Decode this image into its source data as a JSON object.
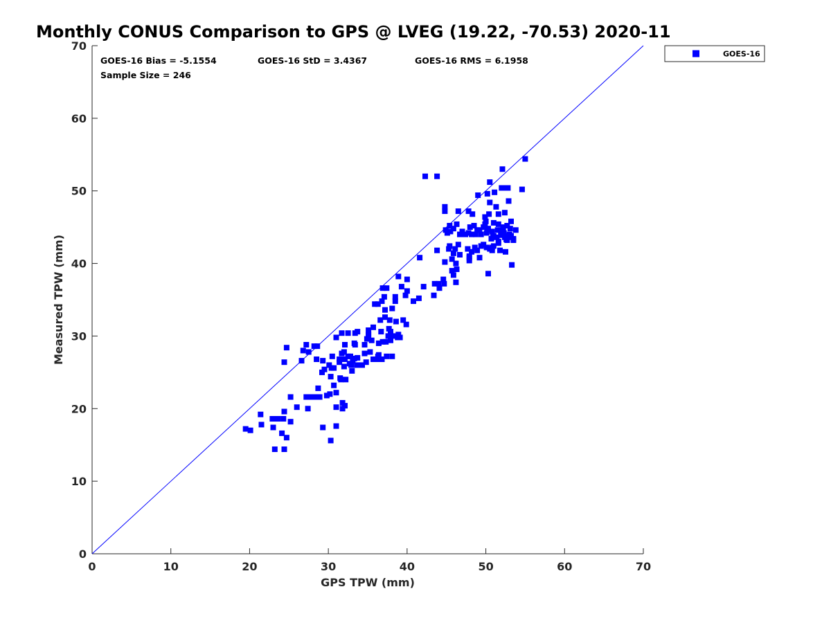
{
  "chart_data": {
    "type": "scatter",
    "title": "Monthly CONUS Comparison to GPS @ LVEG (19.22, -70.53) 2020-11",
    "xlabel": "GPS TPW (mm)",
    "ylabel": "Measured TPW (mm)",
    "xlim": [
      0,
      70
    ],
    "ylim": [
      0,
      70
    ],
    "xticks": [
      0,
      10,
      20,
      30,
      40,
      50,
      60,
      70
    ],
    "yticks": [
      0,
      10,
      20,
      30,
      40,
      50,
      60,
      70
    ],
    "grid": false,
    "legend_position": "top-right (outside plot)",
    "reference_line": {
      "from": [
        0,
        0
      ],
      "to": [
        70,
        70
      ],
      "color": "#0000ff"
    },
    "stats": {
      "bias": "GOES-16 Bias = -5.1554",
      "std": "GOES-16 StD = 3.4367",
      "rms": "GOES-16 RMS = 6.1958",
      "sample": "Sample Size = 246"
    },
    "series": [
      {
        "name": "GOES-16",
        "color": "#0000ff",
        "marker": "square",
        "points": [
          [
            19.5,
            17.2
          ],
          [
            20.1,
            17.0
          ],
          [
            21.4,
            19.2
          ],
          [
            21.5,
            17.8
          ],
          [
            22.9,
            18.6
          ],
          [
            23.0,
            17.4
          ],
          [
            23.2,
            14.4
          ],
          [
            23.6,
            18.6
          ],
          [
            24.1,
            16.6
          ],
          [
            24.4,
            14.4
          ],
          [
            24.4,
            19.6
          ],
          [
            24.7,
            16.0
          ],
          [
            25.2,
            18.2
          ],
          [
            24.4,
            26.4
          ],
          [
            24.7,
            28.4
          ],
          [
            25.2,
            21.6
          ],
          [
            26.0,
            20.2
          ],
          [
            26.6,
            26.6
          ],
          [
            26.8,
            28.0
          ],
          [
            27.2,
            28.8
          ],
          [
            27.5,
            27.8
          ],
          [
            27.2,
            21.6
          ],
          [
            27.4,
            20.0
          ],
          [
            27.8,
            21.6
          ],
          [
            28.3,
            21.6
          ],
          [
            28.2,
            28.6
          ],
          [
            28.6,
            28.6
          ],
          [
            28.5,
            26.8
          ],
          [
            28.9,
            21.6
          ],
          [
            28.7,
            22.8
          ],
          [
            29.2,
            25.0
          ],
          [
            29.3,
            26.6
          ],
          [
            29.3,
            17.4
          ],
          [
            29.5,
            25.4
          ],
          [
            29.8,
            21.8
          ],
          [
            30.1,
            26.0
          ],
          [
            30.2,
            22.0
          ],
          [
            30.3,
            15.6
          ],
          [
            30.5,
            27.2
          ],
          [
            30.3,
            24.4
          ],
          [
            30.7,
            25.6
          ],
          [
            30.7,
            23.2
          ],
          [
            31.0,
            29.8
          ],
          [
            31.0,
            20.2
          ],
          [
            31.0,
            22.2
          ],
          [
            31.0,
            17.6
          ],
          [
            31.4,
            26.8
          ],
          [
            31.5,
            24.2
          ],
          [
            31.7,
            30.4
          ],
          [
            31.7,
            27.6
          ],
          [
            31.6,
            24.0
          ],
          [
            31.8,
            20.8
          ],
          [
            31.8,
            20.0
          ],
          [
            32.0,
            27.8
          ],
          [
            32.0,
            25.8
          ],
          [
            32.1,
            28.8
          ],
          [
            32.1,
            20.4
          ],
          [
            32.1,
            26.8
          ],
          [
            32.2,
            24.0
          ],
          [
            32.5,
            27.2
          ],
          [
            32.5,
            30.4
          ],
          [
            32.7,
            26.2
          ],
          [
            32.8,
            27.2
          ],
          [
            32.9,
            26.0
          ],
          [
            33.0,
            25.2
          ],
          [
            33.1,
            26.6
          ],
          [
            33.3,
            29.0
          ],
          [
            33.4,
            28.8
          ],
          [
            33.4,
            30.4
          ],
          [
            33.7,
            27.0
          ],
          [
            33.6,
            26.0
          ],
          [
            33.7,
            30.6
          ],
          [
            34.3,
            26.0
          ],
          [
            34.6,
            28.8
          ],
          [
            34.9,
            29.6
          ],
          [
            34.8,
            26.4
          ],
          [
            35.1,
            30.2
          ],
          [
            35.1,
            30.8
          ],
          [
            35.3,
            27.8
          ],
          [
            35.5,
            29.4
          ],
          [
            35.7,
            31.2
          ],
          [
            35.7,
            26.8
          ],
          [
            35.9,
            34.4
          ],
          [
            36.2,
            26.8
          ],
          [
            36.3,
            34.4
          ],
          [
            36.3,
            27.2
          ],
          [
            36.4,
            29.0
          ],
          [
            36.6,
            32.2
          ],
          [
            36.7,
            30.6
          ],
          [
            36.8,
            34.8
          ],
          [
            36.9,
            36.6
          ],
          [
            36.9,
            29.2
          ],
          [
            37.1,
            35.4
          ],
          [
            37.2,
            33.6
          ],
          [
            37.2,
            32.6
          ],
          [
            37.3,
            29.2
          ],
          [
            37.4,
            27.2
          ],
          [
            37.4,
            36.6
          ],
          [
            37.6,
            30.0
          ],
          [
            37.8,
            32.2
          ],
          [
            37.9,
            30.6
          ],
          [
            37.9,
            29.4
          ],
          [
            38.1,
            27.2
          ],
          [
            38.1,
            33.8
          ],
          [
            38.3,
            30.0
          ],
          [
            38.5,
            35.4
          ],
          [
            38.5,
            34.8
          ],
          [
            38.6,
            32.0
          ],
          [
            38.9,
            30.2
          ],
          [
            38.9,
            38.2
          ],
          [
            39.1,
            29.8
          ],
          [
            39.3,
            36.8
          ],
          [
            39.5,
            32.2
          ],
          [
            39.8,
            35.6
          ],
          [
            39.9,
            31.6
          ],
          [
            40.0,
            37.8
          ],
          [
            40.0,
            36.2
          ],
          [
            40.8,
            34.8
          ],
          [
            41.5,
            35.2
          ],
          [
            41.6,
            40.8
          ],
          [
            42.1,
            36.8
          ],
          [
            42.3,
            52.0
          ],
          [
            43.4,
            35.6
          ],
          [
            43.5,
            37.2
          ],
          [
            43.8,
            52.0
          ],
          [
            43.8,
            41.8
          ],
          [
            44.0,
            37.2
          ],
          [
            44.1,
            36.6
          ],
          [
            44.6,
            37.8
          ],
          [
            44.7,
            37.2
          ],
          [
            44.8,
            40.2
          ],
          [
            44.8,
            47.8
          ],
          [
            44.8,
            47.2
          ],
          [
            45.1,
            44.2
          ],
          [
            45.3,
            42.0
          ],
          [
            45.4,
            45.2
          ],
          [
            45.5,
            44.4
          ],
          [
            45.7,
            40.6
          ],
          [
            45.7,
            39.0
          ],
          [
            45.9,
            38.4
          ],
          [
            45.9,
            44.8
          ],
          [
            45.9,
            41.4
          ],
          [
            46.2,
            37.4
          ],
          [
            46.2,
            40.0
          ],
          [
            46.3,
            45.4
          ],
          [
            46.5,
            42.6
          ],
          [
            46.3,
            39.2
          ],
          [
            46.7,
            41.2
          ],
          [
            46.5,
            47.2
          ],
          [
            46.7,
            44.0
          ],
          [
            47.0,
            44.4
          ],
          [
            47.4,
            44.0
          ],
          [
            47.7,
            42.0
          ],
          [
            47.8,
            44.2
          ],
          [
            47.8,
            47.2
          ],
          [
            47.9,
            40.8
          ],
          [
            47.9,
            40.4
          ],
          [
            48.0,
            45.0
          ],
          [
            48.2,
            44.0
          ],
          [
            48.2,
            41.6
          ],
          [
            48.3,
            46.8
          ],
          [
            48.5,
            45.2
          ],
          [
            48.6,
            42.2
          ],
          [
            48.7,
            44.0
          ],
          [
            48.9,
            44.6
          ],
          [
            48.9,
            41.8
          ],
          [
            49.0,
            49.4
          ],
          [
            49.2,
            44.6
          ],
          [
            49.2,
            40.8
          ],
          [
            49.4,
            42.4
          ],
          [
            49.7,
            45.0
          ],
          [
            49.7,
            42.6
          ],
          [
            49.9,
            46.4
          ],
          [
            49.9,
            45.4
          ],
          [
            50.0,
            45.8
          ],
          [
            50.1,
            44.2
          ],
          [
            50.1,
            42.2
          ],
          [
            50.2,
            44.6
          ],
          [
            50.2,
            49.6
          ],
          [
            50.3,
            44.8
          ],
          [
            50.3,
            38.6
          ],
          [
            50.4,
            46.8
          ],
          [
            50.5,
            42.0
          ],
          [
            50.5,
            48.4
          ],
          [
            50.5,
            51.2
          ],
          [
            50.7,
            43.4
          ],
          [
            50.8,
            41.8
          ],
          [
            50.8,
            44.4
          ],
          [
            50.8,
            42.2
          ],
          [
            51.0,
            45.6
          ],
          [
            51.0,
            43.8
          ],
          [
            51.0,
            42.4
          ],
          [
            51.1,
            49.8
          ],
          [
            51.3,
            47.8
          ],
          [
            51.4,
            43.6
          ],
          [
            51.5,
            44.6
          ],
          [
            51.6,
            42.8
          ],
          [
            51.6,
            45.4
          ],
          [
            51.6,
            46.8
          ],
          [
            51.6,
            43.0
          ],
          [
            51.8,
            41.8
          ],
          [
            51.9,
            44.6
          ],
          [
            52.0,
            50.4
          ],
          [
            52.1,
            53.0
          ],
          [
            52.2,
            44.6
          ],
          [
            52.2,
            45.0
          ],
          [
            52.3,
            44.2
          ],
          [
            52.4,
            43.6
          ],
          [
            52.4,
            47.0
          ],
          [
            52.5,
            50.4
          ],
          [
            52.5,
            41.6
          ],
          [
            52.7,
            45.2
          ],
          [
            52.7,
            43.8
          ],
          [
            52.7,
            43.2
          ],
          [
            52.8,
            50.4
          ],
          [
            52.9,
            48.6
          ],
          [
            53.0,
            44.0
          ],
          [
            53.1,
            43.6
          ],
          [
            53.1,
            44.8
          ],
          [
            53.2,
            43.8
          ],
          [
            53.2,
            45.8
          ],
          [
            53.3,
            39.8
          ],
          [
            53.5,
            43.2
          ],
          [
            53.5,
            43.4
          ],
          [
            53.8,
            44.6
          ],
          [
            54.6,
            50.2
          ],
          [
            55.0,
            54.4
          ],
          [
            23.3,
            18.6
          ],
          [
            24.3,
            18.6
          ],
          [
            35.1,
            30.1
          ],
          [
            34.6,
            27.6
          ],
          [
            33.3,
            26.9
          ],
          [
            36.4,
            27.4
          ],
          [
            37.7,
            31.0
          ],
          [
            36.8,
            26.8
          ],
          [
            38.8,
            29.8
          ],
          [
            47.9,
            41.0
          ],
          [
            49.4,
            44.0
          ],
          [
            50.9,
            43.7
          ],
          [
            51.9,
            43.9
          ],
          [
            52.6,
            43.3
          ],
          [
            45.4,
            42.4
          ],
          [
            46.1,
            42.0
          ],
          [
            44.9,
            44.6
          ],
          [
            30.4,
            25.6
          ],
          [
            31.4,
            26.4
          ]
        ]
      }
    ]
  }
}
